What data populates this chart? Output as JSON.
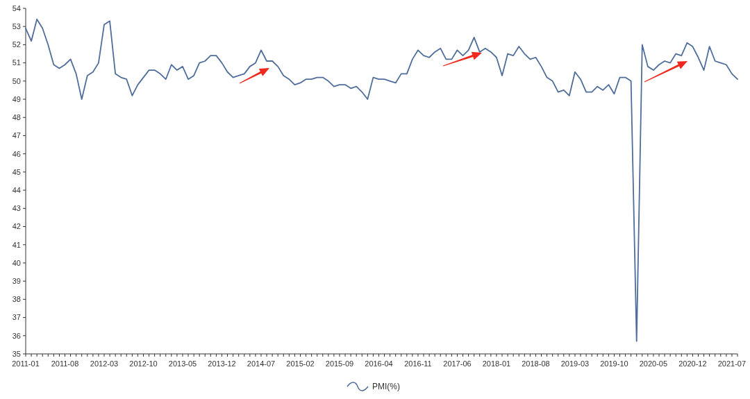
{
  "chart_data": {
    "type": "line",
    "categories": [
      "2011-01",
      null,
      null,
      null,
      null,
      null,
      null,
      "2011-08",
      null,
      null,
      null,
      null,
      null,
      null,
      "2012-03",
      null,
      null,
      null,
      null,
      null,
      null,
      "2012-10",
      null,
      null,
      null,
      null,
      null,
      null,
      "2013-05",
      null,
      null,
      null,
      null,
      null,
      null,
      "2013-12",
      null,
      null,
      null,
      null,
      null,
      null,
      "2014-07",
      null,
      null,
      null,
      null,
      null,
      null,
      "2015-02",
      null,
      null,
      null,
      null,
      null,
      null,
      "2015-09",
      null,
      null,
      null,
      null,
      null,
      null,
      "2016-04",
      null,
      null,
      null,
      null,
      null,
      null,
      "2016-11",
      null,
      null,
      null,
      null,
      null,
      null,
      "2017-06",
      null,
      null,
      null,
      null,
      null,
      null,
      "2018-01",
      null,
      null,
      null,
      null,
      null,
      null,
      "2018-08",
      null,
      null,
      null,
      null,
      null,
      null,
      "2019-03",
      null,
      null,
      null,
      null,
      null,
      null,
      "2019-10",
      null,
      null,
      null,
      null,
      null,
      null,
      "2020-05",
      null,
      null,
      null,
      null,
      null,
      null,
      "2020-12",
      null,
      null,
      null,
      null,
      null,
      null,
      "2021-07",
      null
    ],
    "series": [
      {
        "name": "PMI(%)",
        "color": "#4f6d9a",
        "values": [
          52.9,
          52.2,
          53.4,
          52.9,
          52.0,
          50.9,
          50.7,
          50.9,
          51.2,
          50.4,
          49.0,
          50.3,
          50.5,
          51.0,
          53.1,
          53.3,
          50.4,
          50.2,
          50.1,
          49.2,
          49.8,
          50.2,
          50.6,
          50.6,
          50.4,
          50.1,
          50.9,
          50.6,
          50.8,
          50.1,
          50.3,
          51.0,
          51.1,
          51.4,
          51.4,
          51.0,
          50.5,
          50.2,
          50.3,
          50.4,
          50.8,
          51.0,
          51.7,
          51.1,
          51.1,
          50.8,
          50.3,
          50.1,
          49.8,
          49.9,
          50.1,
          50.1,
          50.2,
          50.2,
          50.0,
          49.7,
          49.8,
          49.8,
          49.6,
          49.7,
          49.4,
          49.0,
          50.2,
          50.1,
          50.1,
          50.0,
          49.9,
          50.4,
          50.4,
          51.2,
          51.7,
          51.4,
          51.3,
          51.6,
          51.8,
          51.2,
          51.2,
          51.7,
          51.4,
          51.7,
          52.4,
          51.6,
          51.8,
          51.6,
          51.3,
          50.3,
          51.5,
          51.4,
          51.9,
          51.5,
          51.2,
          51.3,
          50.8,
          50.2,
          50.0,
          49.4,
          49.5,
          49.2,
          50.5,
          50.1,
          49.4,
          49.4,
          49.7,
          49.5,
          49.8,
          49.3,
          50.2,
          50.2,
          50.0,
          35.7,
          52.0,
          50.8,
          50.6,
          50.9,
          51.1,
          51.0,
          51.5,
          51.4,
          52.1,
          51.9,
          51.3,
          50.6,
          51.9,
          51.1,
          51.0,
          50.9,
          50.4,
          50.1
        ]
      }
    ],
    "ylim": [
      35,
      54
    ],
    "yticks": [
      35,
      36,
      37,
      38,
      39,
      40,
      41,
      42,
      43,
      44,
      45,
      46,
      47,
      48,
      49,
      50,
      51,
      52,
      53,
      54
    ],
    "legend": "bottom"
  }
}
